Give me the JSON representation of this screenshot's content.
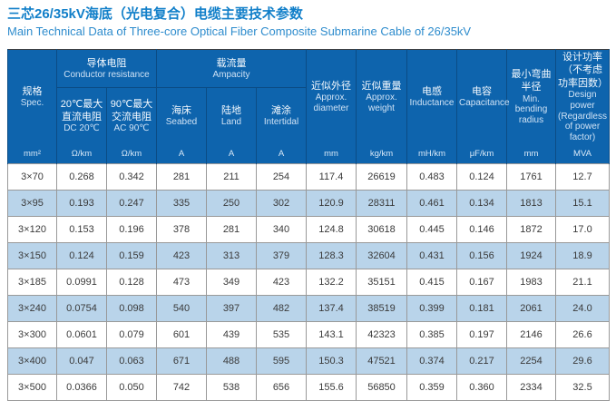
{
  "page": {
    "title_zh": "三芯26/35kV海底（光电复合）电缆主要技术参数",
    "title_en": "Main Technical Data of Three-core Optical Fiber Composite Submarine Cable of 26/35kV"
  },
  "colors": {
    "title_blue": "#117fc9",
    "subtitle_blue": "#2e8ccd",
    "header_bg": "#0e64ad",
    "header_divider": "#0b4c85",
    "row_alt_bg": "#b9d4ea",
    "grid_line": "#999999",
    "outer_border": "#3f3f3f",
    "cell_text": "#3a3a3a"
  },
  "table": {
    "groups": {
      "conductor": {
        "zh": "导体电阻",
        "en": "Conductor resistance"
      },
      "ampacity": {
        "zh": "载流量",
        "en": "Ampacity"
      }
    },
    "columns": {
      "spec": {
        "zh": "规格",
        "en": "Spec.",
        "unit": "mm²"
      },
      "dc": {
        "zh": "20℃最大直流电阻",
        "en": "DC 20℃",
        "unit": "Ω/km"
      },
      "ac": {
        "zh": "90℃最大交流电阻",
        "en": "AC 90℃",
        "unit": "Ω/km"
      },
      "seabed": {
        "zh": "海床",
        "en": "Seabed",
        "unit": "A"
      },
      "land": {
        "zh": "陆地",
        "en": "Land",
        "unit": "A"
      },
      "intertidal": {
        "zh": "滩涂",
        "en": "Intertidal",
        "unit": "A"
      },
      "diameter": {
        "zh": "近似外径",
        "en": "Approx. diameter",
        "unit": "mm"
      },
      "weight": {
        "zh": "近似重量",
        "en": "Approx. weight",
        "unit": "kg/km"
      },
      "inductance": {
        "zh": "电感",
        "en": "Inductance",
        "unit": "mH/km"
      },
      "capacitance": {
        "zh": "电容",
        "en": "Capacitance",
        "unit": "μF/km"
      },
      "bending": {
        "zh": "最小弯曲半径",
        "en": "Min. bending radius",
        "unit": "mm"
      },
      "power": {
        "zh": "设计功率（不考虑功率因数）",
        "en": "Design power (Regardless of power factor)",
        "unit": "MVA"
      }
    },
    "rows": [
      [
        "3×70",
        "0.268",
        "0.342",
        "281",
        "211",
        "254",
        "117.4",
        "26619",
        "0.483",
        "0.124",
        "1761",
        "12.7"
      ],
      [
        "3×95",
        "0.193",
        "0.247",
        "335",
        "250",
        "302",
        "120.9",
        "28311",
        "0.461",
        "0.134",
        "1813",
        "15.1"
      ],
      [
        "3×120",
        "0.153",
        "0.196",
        "378",
        "281",
        "340",
        "124.8",
        "30618",
        "0.445",
        "0.146",
        "1872",
        "17.0"
      ],
      [
        "3×150",
        "0.124",
        "0.159",
        "423",
        "313",
        "379",
        "128.3",
        "32604",
        "0.431",
        "0.156",
        "1924",
        "18.9"
      ],
      [
        "3×185",
        "0.0991",
        "0.128",
        "473",
        "349",
        "423",
        "132.2",
        "35151",
        "0.415",
        "0.167",
        "1983",
        "21.1"
      ],
      [
        "3×240",
        "0.0754",
        "0.098",
        "540",
        "397",
        "482",
        "137.4",
        "38519",
        "0.399",
        "0.181",
        "2061",
        "24.0"
      ],
      [
        "3×300",
        "0.0601",
        "0.079",
        "601",
        "439",
        "535",
        "143.1",
        "42323",
        "0.385",
        "0.197",
        "2146",
        "26.6"
      ],
      [
        "3×400",
        "0.047",
        "0.063",
        "671",
        "488",
        "595",
        "150.3",
        "47521",
        "0.374",
        "0.217",
        "2254",
        "29.6"
      ],
      [
        "3×500",
        "0.0366",
        "0.050",
        "742",
        "538",
        "656",
        "155.6",
        "56850",
        "0.359",
        "0.360",
        "2334",
        "32.5"
      ]
    ]
  }
}
